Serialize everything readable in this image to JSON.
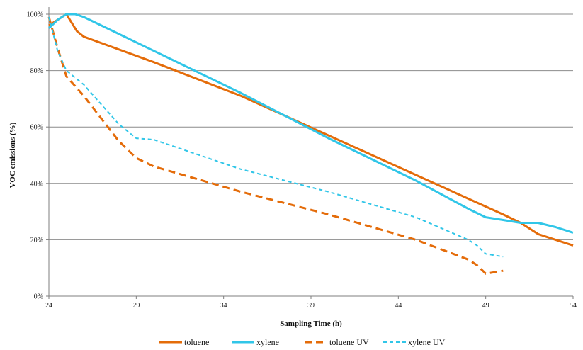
{
  "chart_data": {
    "type": "line",
    "xlabel": "Sampling Time (h)",
    "ylabel": "VOC emissions (%)",
    "xlim": [
      24,
      54
    ],
    "ylim": [
      0,
      100
    ],
    "x_ticks": [
      24,
      29,
      34,
      39,
      44,
      49,
      54
    ],
    "y_ticks": [
      0,
      20,
      40,
      60,
      80,
      100
    ],
    "y_tick_labels": [
      "0%",
      "20%",
      "40%",
      "60%",
      "80%",
      "100%"
    ],
    "x_tick_labels": [
      "24",
      "29",
      "34",
      "39",
      "44",
      "49",
      "54"
    ],
    "grid": "horizontal",
    "legend_position": "bottom",
    "series": [
      {
        "name": "toluene",
        "color": "#E46C0A",
        "dash": "solid",
        "points": [
          [
            24,
            96
          ],
          [
            24.5,
            98
          ],
          [
            25,
            100
          ],
          [
            25.3,
            97
          ],
          [
            25.6,
            94
          ],
          [
            26,
            92
          ],
          [
            30,
            83
          ],
          [
            35,
            71
          ],
          [
            40,
            57
          ],
          [
            45,
            43
          ],
          [
            50,
            29
          ],
          [
            51,
            26
          ],
          [
            52,
            22
          ],
          [
            53,
            20
          ],
          [
            54,
            18
          ]
        ]
      },
      {
        "name": "xylene",
        "color": "#31C6E8",
        "dash": "solid",
        "points": [
          [
            24,
            95
          ],
          [
            24.5,
            98
          ],
          [
            25,
            100
          ],
          [
            25.5,
            100
          ],
          [
            26,
            99
          ],
          [
            30,
            87
          ],
          [
            35,
            72
          ],
          [
            40,
            56
          ],
          [
            45,
            41
          ],
          [
            48,
            31
          ],
          [
            49,
            28
          ],
          [
            50,
            27
          ],
          [
            51,
            26
          ],
          [
            52,
            26
          ],
          [
            53,
            24.5
          ],
          [
            54,
            22.5
          ]
        ]
      },
      {
        "name": "toluene UV",
        "color": "#E46C0A",
        "dash": "dashed",
        "points": [
          [
            24,
            99
          ],
          [
            24.5,
            88
          ],
          [
            25,
            78
          ],
          [
            26,
            71
          ],
          [
            27,
            63
          ],
          [
            28,
            55
          ],
          [
            29,
            49
          ],
          [
            30,
            46
          ],
          [
            35,
            37
          ],
          [
            40,
            29
          ],
          [
            45,
            20
          ],
          [
            48,
            13
          ],
          [
            48.5,
            11
          ],
          [
            49,
            8
          ],
          [
            49.5,
            8.5
          ],
          [
            50,
            9
          ]
        ]
      },
      {
        "name": "xylene UV",
        "color": "#31C6E8",
        "dash": "dotted",
        "points": [
          [
            24,
            99
          ],
          [
            24.5,
            87
          ],
          [
            25,
            80
          ],
          [
            26,
            75
          ],
          [
            27,
            68
          ],
          [
            28,
            61
          ],
          [
            29,
            56
          ],
          [
            30,
            55.5
          ],
          [
            35,
            45
          ],
          [
            40,
            37
          ],
          [
            45,
            28
          ],
          [
            48,
            20
          ],
          [
            48.5,
            18
          ],
          [
            49,
            15
          ],
          [
            49.5,
            14.5
          ],
          [
            50,
            14
          ]
        ]
      }
    ]
  }
}
